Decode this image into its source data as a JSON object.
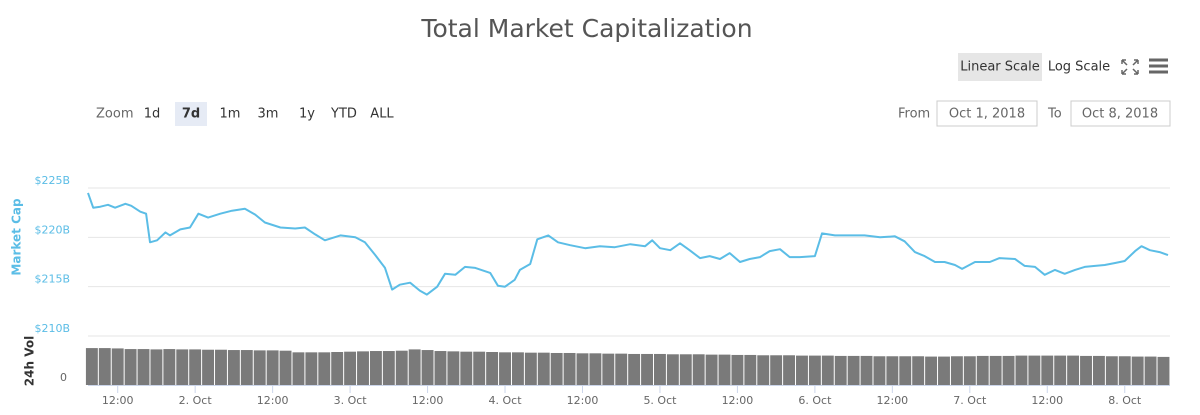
{
  "controls": {
    "scale_buttons": [
      "Linear Scale",
      "Log Scale"
    ],
    "active_scale": "Linear Scale",
    "zoom_label": "Zoom",
    "zoom_buttons": [
      "1d",
      "7d",
      "1m",
      "3m",
      "1y",
      "YTD",
      "ALL"
    ],
    "active_zoom": "7d",
    "from_label": "From",
    "from_value": "Oct 1, 2018",
    "to_label": "To",
    "to_value": "Oct 8, 2018"
  },
  "chart_data": {
    "type": "line",
    "title": "Total Market Capitalization",
    "log_scale": false,
    "grid": true,
    "xlim": [
      7.4,
      174.7
    ],
    "xticks": [
      {
        "value": 12,
        "label": "12:00"
      },
      {
        "value": 24,
        "label": "2. Oct"
      },
      {
        "value": 36,
        "label": "12:00"
      },
      {
        "value": 48,
        "label": "3. Oct"
      },
      {
        "value": 60,
        "label": "12:00"
      },
      {
        "value": 72,
        "label": "4. Oct"
      },
      {
        "value": 84,
        "label": "12:00"
      },
      {
        "value": 96,
        "label": "5. Oct"
      },
      {
        "value": 108,
        "label": "12:00"
      },
      {
        "value": 120,
        "label": "6. Oct"
      },
      {
        "value": 132,
        "label": "12:00"
      },
      {
        "value": 144,
        "label": "7. Oct"
      },
      {
        "value": 156,
        "label": "12:00"
      },
      {
        "value": 168,
        "label": "8. Oct"
      }
    ],
    "ylim": [
      210,
      225
    ],
    "yticks": [
      {
        "value": 210,
        "label": "$210B"
      },
      {
        "value": 215,
        "label": "$215B"
      },
      {
        "value": 220,
        "label": "$220B"
      },
      {
        "value": 225,
        "label": "$225B"
      }
    ],
    "y2lim": [
      0,
      15
    ],
    "y2ticks": [
      0
    ],
    "series": [
      {
        "name": "Market Cap",
        "color": "#5bbde6",
        "x": [
          7.4,
          8.2,
          9.3,
          10.5,
          11.6,
          13.2,
          14.1,
          15.5,
          16.4,
          17.0,
          18.1,
          19.4,
          20.1,
          21.7,
          23.2,
          24.5,
          26.0,
          27.9,
          29.7,
          31.7,
          33.3,
          34.8,
          37.2,
          39.5,
          41.0,
          42.6,
          44.1,
          46.5,
          48.8,
          50.3,
          51.9,
          53.4,
          54.5,
          55.7,
          57.3,
          58.8,
          59.9,
          61.5,
          62.7,
          64.3,
          65.8,
          67.4,
          69.7,
          70.9,
          72.0,
          73.5,
          74.3,
          75.9,
          77.0,
          78.7,
          80.2,
          82.1,
          84.4,
          86.7,
          89.0,
          91.4,
          93.7,
          94.8,
          96.0,
          97.6,
          99.1,
          100.6,
          102.2,
          103.7,
          105.3,
          106.8,
          108.4,
          109.9,
          111.5,
          113.0,
          114.6,
          116.1,
          117.7,
          120.0,
          121.1,
          123.1,
          125.4,
          127.7,
          130.1,
          132.4,
          133.9,
          135.5,
          137.0,
          138.6,
          140.1,
          141.7,
          142.8,
          144.8,
          147.1,
          148.6,
          151.0,
          152.5,
          154.1,
          155.6,
          157.2,
          158.7,
          160.3,
          161.8,
          163.4,
          164.9,
          166.5,
          168.0,
          169.6,
          170.6,
          171.9,
          173.4,
          174.7
        ],
        "values": [
          224.5,
          223.0,
          223.1,
          223.3,
          223.0,
          223.4,
          223.2,
          222.6,
          222.4,
          219.5,
          219.7,
          220.5,
          220.2,
          220.8,
          221.0,
          222.4,
          222.0,
          222.4,
          222.7,
          222.9,
          222.3,
          221.5,
          221.0,
          220.9,
          221.0,
          220.3,
          219.7,
          220.2,
          220.0,
          219.5,
          218.2,
          216.9,
          214.7,
          215.2,
          215.4,
          214.6,
          214.2,
          215.0,
          216.3,
          216.2,
          217.0,
          216.9,
          216.4,
          215.1,
          215.0,
          215.7,
          216.7,
          217.3,
          219.8,
          220.2,
          219.5,
          219.2,
          218.9,
          219.1,
          219.0,
          219.3,
          219.1,
          219.7,
          218.9,
          218.7,
          219.4,
          218.7,
          217.9,
          218.1,
          217.8,
          218.4,
          217.5,
          217.8,
          218.0,
          218.6,
          218.8,
          218.0,
          218.0,
          218.1,
          220.4,
          220.2,
          220.2,
          220.2,
          220.0,
          220.1,
          219.6,
          218.5,
          218.1,
          217.5,
          217.5,
          217.2,
          216.8,
          217.5,
          217.5,
          217.9,
          217.8,
          217.1,
          217.0,
          216.2,
          216.7,
          216.3,
          216.7,
          217.0,
          217.1,
          217.2,
          217.4,
          217.6,
          218.6,
          219.1,
          218.7,
          218.5,
          218.2
        ]
      },
      {
        "name": "24h Vol",
        "color": "#7a7a7a",
        "axis": "y2",
        "x": [
          8,
          10,
          12,
          14,
          16,
          18,
          20,
          22,
          24,
          26,
          28,
          30,
          32,
          34,
          36,
          38,
          40,
          42,
          44,
          46,
          48,
          50,
          52,
          54,
          56,
          58,
          60,
          62,
          64,
          66,
          68,
          70,
          72,
          74,
          76,
          78,
          80,
          82,
          84,
          86,
          88,
          90,
          92,
          94,
          96,
          98,
          100,
          102,
          104,
          106,
          108,
          110,
          112,
          114,
          116,
          118,
          120,
          122,
          124,
          126,
          128,
          130,
          132,
          134,
          136,
          138,
          140,
          142,
          144,
          146,
          148,
          150,
          152,
          154,
          156,
          158,
          160,
          162,
          164,
          166,
          168,
          170,
          172,
          174
        ],
        "values": [
          11.3,
          11.3,
          11.2,
          11.0,
          11.0,
          10.9,
          11.0,
          10.9,
          10.9,
          10.8,
          10.8,
          10.7,
          10.7,
          10.6,
          10.6,
          10.5,
          10.0,
          10.0,
          10.0,
          10.1,
          10.2,
          10.3,
          10.4,
          10.4,
          10.5,
          10.9,
          10.7,
          10.4,
          10.3,
          10.2,
          10.2,
          10.1,
          10.0,
          10.0,
          9.9,
          9.9,
          9.8,
          9.8,
          9.7,
          9.7,
          9.6,
          9.6,
          9.5,
          9.5,
          9.5,
          9.4,
          9.4,
          9.4,
          9.3,
          9.3,
          9.2,
          9.2,
          9.1,
          9.1,
          9.1,
          9.0,
          9.0,
          9.0,
          8.9,
          8.9,
          8.9,
          8.8,
          8.8,
          8.8,
          8.8,
          8.7,
          8.7,
          8.8,
          8.8,
          8.9,
          8.9,
          8.9,
          9.0,
          9.0,
          9.0,
          9.0,
          9.0,
          8.9,
          8.9,
          8.8,
          8.8,
          8.7,
          8.7,
          8.6
        ]
      }
    ]
  }
}
